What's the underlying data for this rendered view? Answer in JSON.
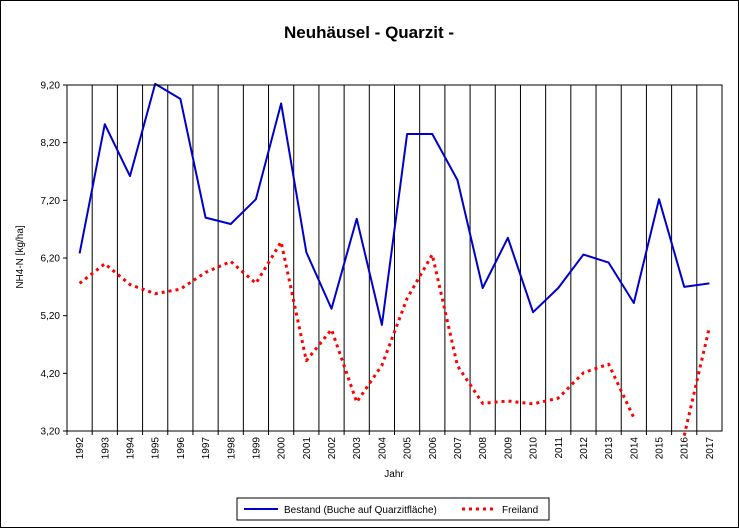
{
  "chart_data": {
    "type": "line",
    "title": "Neuhäusel - Quarzit -",
    "xlabel": "Jahr",
    "ylabel": "NH4-N [kg/ha]",
    "ylim": [
      3.2,
      9.2
    ],
    "yticks": [
      "3,20",
      "4,20",
      "5,20",
      "6,20",
      "7,20",
      "8,20",
      "9,20"
    ],
    "grid": "vertical",
    "legend": "bottom",
    "categories": [
      "1992",
      "1993",
      "1994",
      "1995",
      "1996",
      "1997",
      "1998",
      "1999",
      "2000",
      "2001",
      "2002",
      "2003",
      "2004",
      "2005",
      "2006",
      "2007",
      "2008",
      "2009",
      "2010",
      "2011",
      "2012",
      "2013",
      "2014",
      "2015",
      "2016",
      "2017"
    ],
    "series": [
      {
        "name": "Bestand (Buche auf Quarzitfläche)",
        "color": "#0000cc",
        "style": "solid",
        "values": [
          6.28,
          8.52,
          7.62,
          9.22,
          8.96,
          6.9,
          6.79,
          7.22,
          8.88,
          6.3,
          5.32,
          6.88,
          5.04,
          8.35,
          8.35,
          7.55,
          5.68,
          6.55,
          5.26,
          5.68,
          6.26,
          6.12,
          5.42,
          7.22,
          5.7,
          5.76
        ]
      },
      {
        "name": "Freiland",
        "color": "#ff0000",
        "style": "dotted",
        "values": [
          5.76,
          6.1,
          5.74,
          5.58,
          5.66,
          5.95,
          6.14,
          5.76,
          6.48,
          4.42,
          4.96,
          3.7,
          4.34,
          5.5,
          6.26,
          4.33,
          3.68,
          3.72,
          3.67,
          3.77,
          4.21,
          4.36,
          3.43,
          null,
          3.12,
          5
        ]
      }
    ]
  }
}
